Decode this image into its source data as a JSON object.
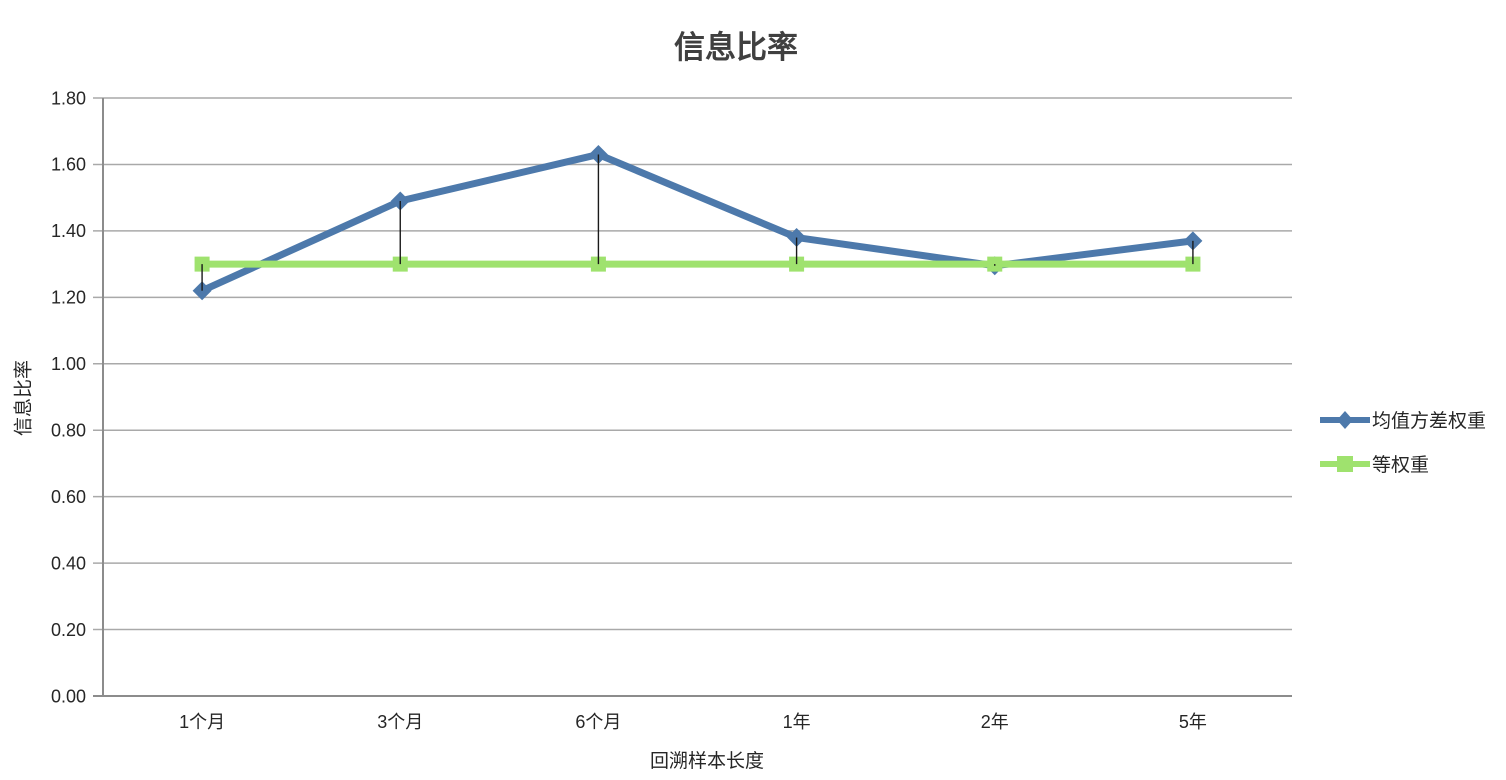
{
  "chart_data": {
    "type": "line",
    "title": "信息比率",
    "xlabel": "回溯样本长度",
    "ylabel": "信息比率",
    "categories": [
      "1个月",
      "3个月",
      "6个月",
      "1年",
      "2年",
      "5年"
    ],
    "series": [
      {
        "name": "均值方差权重",
        "marker": "diamond",
        "color": "#4d79ab",
        "values": [
          1.22,
          1.49,
          1.63,
          1.38,
          1.295,
          1.37
        ]
      },
      {
        "name": "等权重",
        "marker": "square",
        "color": "#9fe26e",
        "values": [
          1.3,
          1.3,
          1.3,
          1.3,
          1.3,
          1.3
        ]
      }
    ],
    "ylim": [
      0,
      1.8
    ],
    "ytick_labels": [
      "0.00",
      "0.20",
      "0.40",
      "0.60",
      "0.80",
      "1.00",
      "1.20",
      "1.40",
      "1.60",
      "1.80"
    ],
    "grid": true,
    "high_low_lines": true,
    "legend_position": "right"
  },
  "colors": {
    "grid": "#a9a9a9",
    "axis": "#8c8c8c",
    "high_low": "#1a1a1a",
    "text": "#262626",
    "title": "#404040"
  }
}
